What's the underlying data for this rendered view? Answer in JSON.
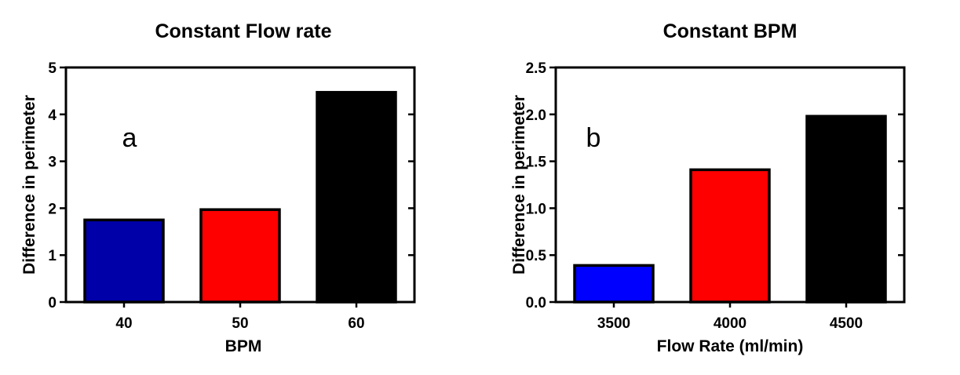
{
  "chart_data": [
    {
      "type": "bar",
      "title": "Constant Flow rate",
      "xlabel": "BPM",
      "ylabel": "Difference in perimeter",
      "categories": [
        "40",
        "50",
        "60"
      ],
      "values": [
        1.75,
        1.97,
        4.47
      ],
      "colors": [
        "#0000a8",
        "#ff0000",
        "#000000"
      ],
      "ylim": [
        0,
        5
      ],
      "yticks": [
        "0",
        "1",
        "2",
        "3",
        "4",
        "5"
      ],
      "ytick_values": [
        0,
        1,
        2,
        3,
        4,
        5
      ],
      "annotation": "a",
      "grid": false,
      "legend": "none"
    },
    {
      "type": "bar",
      "title": "Constant BPM",
      "xlabel": "Flow Rate (ml/min)",
      "ylabel": "Difference in perimeter",
      "categories": [
        "3500",
        "4000",
        "4500"
      ],
      "values": [
        0.39,
        1.41,
        1.98
      ],
      "colors": [
        "#0000ff",
        "#ff0000",
        "#000000"
      ],
      "ylim": [
        0,
        2.5
      ],
      "yticks": [
        "0.0",
        "0.5",
        "1.0",
        "1.5",
        "2.0",
        "2.5"
      ],
      "ytick_values": [
        0,
        0.5,
        1.0,
        1.5,
        2.0,
        2.5
      ],
      "annotation": "b",
      "grid": false,
      "legend": "none"
    }
  ]
}
